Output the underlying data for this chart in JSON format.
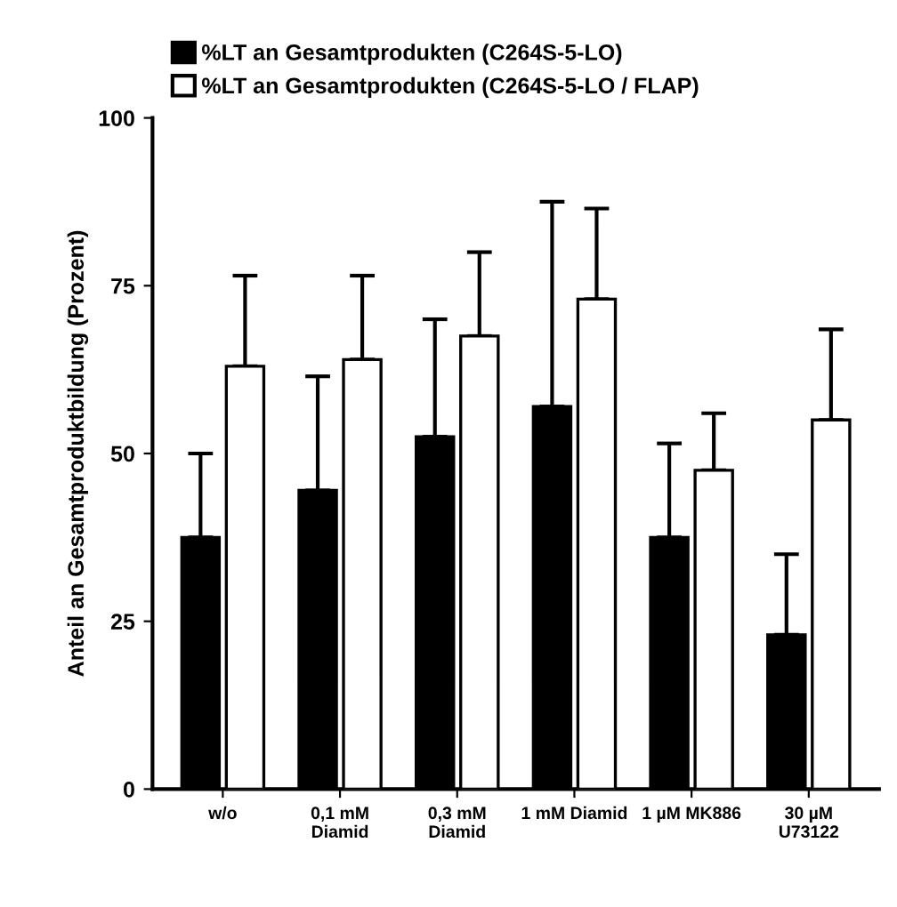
{
  "chart_data": {
    "type": "bar",
    "ylabel": "Anteil an Gesamtproduktbildung (Prozent)",
    "categories": [
      "w/o",
      "0,1 mM\nDiamid",
      "0,3 mM\nDiamid",
      "1 mM Diamid",
      "1 µM MK886",
      "30 µM\nU73122"
    ],
    "series": [
      {
        "name": "%LT an Gesamtprodukten (C264S-5-LO)",
        "color": "#000000",
        "values": [
          37.5,
          44.5,
          52.5,
          57,
          37.5,
          23
        ],
        "errors": [
          [
            37.5,
            50
          ],
          [
            44.5,
            61.5
          ],
          [
            52.5,
            70
          ],
          [
            57,
            87.5
          ],
          [
            37.5,
            51.5
          ],
          [
            23,
            35
          ]
        ]
      },
      {
        "name": "%LT an Gesamtprodukten (C264S-5-LO / FLAP)",
        "color": "#ffffff",
        "values": [
          63,
          64,
          67.5,
          73,
          47.5,
          55
        ],
        "errors": [
          [
            63,
            76.5
          ],
          [
            64,
            76.5
          ],
          [
            67.5,
            80
          ],
          [
            73,
            86.5
          ],
          [
            47.5,
            56
          ],
          [
            55,
            68.5
          ]
        ]
      }
    ],
    "ylim": [
      0,
      100
    ],
    "yticks": [
      0,
      25,
      50,
      75,
      100
    ],
    "legend": "top",
    "grid": false
  }
}
